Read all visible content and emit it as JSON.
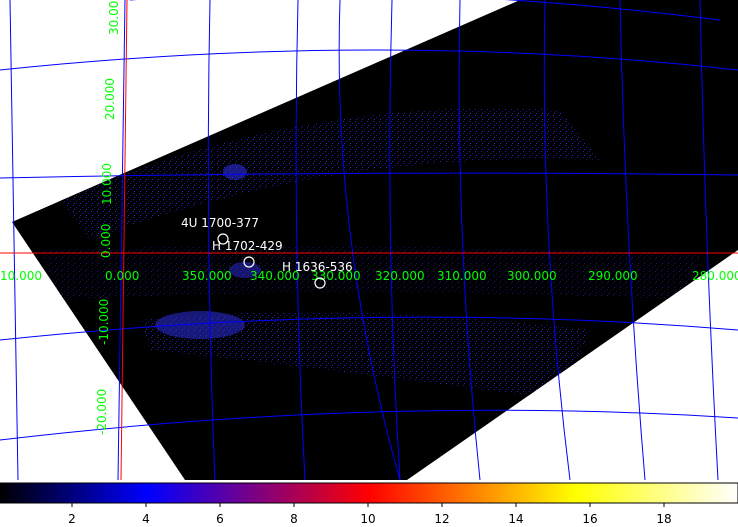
{
  "image": {
    "background_color": "#ffffff",
    "grid_color": "#0000ff",
    "axis_color": "#ff0000",
    "label_color": "#00ff00",
    "data_color": "#000000",
    "emission_color": "#1a1adc"
  },
  "grid_labels": {
    "longitude": [
      "10.000",
      "0.000",
      "350.000",
      "340.000",
      "330.000",
      "320.000",
      "310.000",
      "300.000",
      "290.000",
      "280.000"
    ],
    "latitude": [
      "30.000",
      "20.000",
      "10.000",
      "0.000",
      "-10.000",
      "-20.000"
    ]
  },
  "sources": [
    {
      "name": "4U 1700-377",
      "marker": "circle"
    },
    {
      "name": "H 1702-429",
      "marker": "circle"
    },
    {
      "name": "H 1636-536",
      "marker": "circle"
    }
  ],
  "colorbar": {
    "ticks": [
      "2",
      "4",
      "6",
      "8",
      "10",
      "12",
      "14",
      "16",
      "18"
    ],
    "colors": [
      "#000000",
      "#0000ff",
      "#ff0000",
      "#ffff00",
      "#ffffff"
    ]
  }
}
